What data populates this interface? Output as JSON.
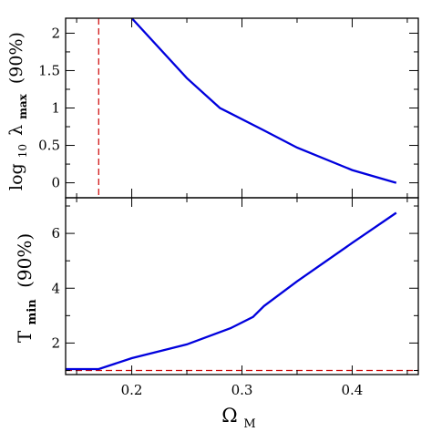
{
  "chart_data": [
    {
      "type": "line",
      "panel": "top",
      "ylabel": {
        "prefix": "log",
        "sub": "10",
        "greek": "λ",
        "greek_sub": "max",
        "suffix": "(90%)"
      },
      "xlim": [
        0.14,
        0.46
      ],
      "ylim": [
        -0.2,
        2.2
      ],
      "yticks": [
        0,
        0.5,
        1,
        1.5,
        2
      ],
      "ytick_labels": [
        "0",
        "0.5",
        "1",
        "1.5",
        "2"
      ],
      "series": [
        {
          "x": [
            0.2,
            0.25,
            0.28,
            0.32,
            0.35,
            0.4,
            0.44
          ],
          "y": [
            2.2,
            1.4,
            1.0,
            0.7,
            0.47,
            0.17,
            0.0
          ],
          "color": "#0000dd"
        }
      ],
      "reference_lines": [
        {
          "orientation": "vertical",
          "value": 0.17,
          "color": "#cc0000",
          "style": "dashed"
        }
      ]
    },
    {
      "type": "line",
      "panel": "bottom",
      "xlabel": {
        "greek": "Ω",
        "sub": "M"
      },
      "ylabel": {
        "prefix": "T",
        "sub": "min",
        "suffix": "(90%)"
      },
      "xlim": [
        0.14,
        0.46
      ],
      "ylim": [
        0.85,
        7.3
      ],
      "xticks": [
        0.2,
        0.3,
        0.4
      ],
      "xtick_labels": [
        "0.2",
        "0.3",
        "0.4"
      ],
      "yticks": [
        2,
        4,
        6
      ],
      "ytick_labels": [
        "2",
        "4",
        "6"
      ],
      "series": [
        {
          "x": [
            0.14,
            0.17,
            0.2,
            0.25,
            0.29,
            0.31,
            0.32,
            0.35,
            0.4,
            0.44
          ],
          "y": [
            1.05,
            1.05,
            1.45,
            1.95,
            2.55,
            2.95,
            3.35,
            4.25,
            5.65,
            6.75
          ],
          "color": "#0000dd"
        }
      ],
      "reference_lines": [
        {
          "orientation": "horizontal",
          "value": 1.0,
          "color": "#cc0000",
          "style": "dashed"
        }
      ]
    }
  ]
}
